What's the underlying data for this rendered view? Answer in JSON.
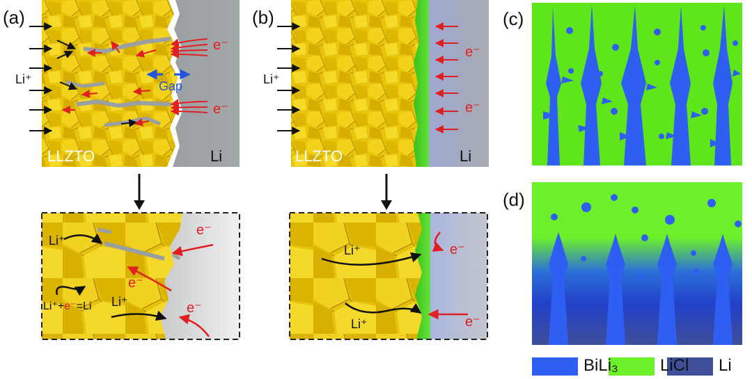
{
  "panels": {
    "a": {
      "label": "(a)",
      "material_label": "LLZTO",
      "metal_label": "Li",
      "ion_label": "Li⁺",
      "electron_label": "e⁻",
      "gap_label": "Gap",
      "detail": {
        "ion_label": "Li⁺",
        "electron_label": "e⁻",
        "reaction_prefix": "Li⁺+",
        "reaction_electron": "e⁻",
        "reaction_suffix": "=Li"
      }
    },
    "b": {
      "label": "(b)",
      "material_label": "LLZTO",
      "metal_label": "Li",
      "ion_label": "Li⁺",
      "electron_label": "e⁻",
      "detail": {
        "ion_label": "Li⁺",
        "electron_label": "e⁻"
      }
    },
    "c": {
      "label": "(c)"
    },
    "d": {
      "label": "(d)"
    }
  },
  "legend": [
    {
      "label": "BiLi₃",
      "color": "#2f5ff2"
    },
    {
      "label": "LiCl",
      "color": "#6cf02a"
    },
    {
      "label": "Li",
      "color": "#3f4f99"
    }
  ],
  "colors": {
    "llzto": "#e8c40a",
    "li_metal": "#9a9fa2",
    "licl": "#5ee61a",
    "bili3": "#2f5ff2",
    "electron_arrow": "#e02020",
    "gap_arrow": "#2255dd"
  }
}
